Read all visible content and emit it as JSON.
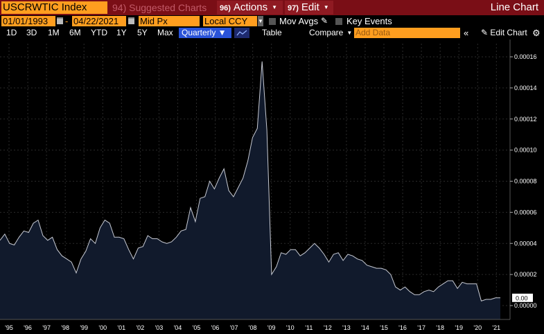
{
  "header": {
    "ticker": "USCRWTIC Index",
    "suggested": "94) Suggested Charts",
    "actions": {
      "num": "96)",
      "label": "Actions"
    },
    "edit": {
      "num": "97)",
      "label": "Edit"
    },
    "title": "Line Chart"
  },
  "controls": {
    "start_date": "01/01/1993",
    "end_date": "04/22/2021",
    "field": "Mid Px",
    "currency": "Local CCY",
    "mov_avgs": "Mov Avgs",
    "key_events": "Key Events"
  },
  "toolbar": {
    "ranges": [
      "1D",
      "3D",
      "1M",
      "6M",
      "YTD",
      "1Y",
      "5Y",
      "Max"
    ],
    "period": "Quarterly ▼",
    "table": "Table",
    "compare": "Compare",
    "add_data_placeholder": "Add Data",
    "edit_chart": "Edit Chart"
  },
  "colors": {
    "header_bg": "#7a0e16",
    "orange_field": "#ff9e1f",
    "line": "#c8cbd4",
    "area": "#111a2c",
    "selected": "#2a53d8"
  },
  "chart_data": {
    "type": "area",
    "series": [
      {
        "values": [
          4.2e-05,
          4.6e-05,
          4e-05,
          3.9e-05,
          4.4e-05,
          4.8e-05,
          4.7e-05,
          5.3e-05,
          5.5e-05,
          4.5e-05,
          4.2e-05,
          4.4e-05,
          3.6e-05,
          3.2e-05,
          3e-05,
          2.8e-05,
          2.1e-05,
          3e-05,
          3.5e-05,
          4.3e-05,
          4e-05,
          5e-05,
          5.5e-05,
          5.3e-05,
          4.4e-05,
          4.4e-05,
          4.3e-05,
          3.6e-05,
          3e-05,
          3.7e-05,
          3.8e-05,
          4.5e-05,
          4.3e-05,
          4.3e-05,
          4.1e-05,
          4e-05,
          4.1e-05,
          4.4e-05,
          4.8e-05,
          4.9e-05,
          6.3e-05,
          5.4e-05,
          6.9e-05,
          7e-05,
          8e-05,
          7.5e-05,
          8.2e-05,
          8.8e-05,
          7.4e-05,
          7e-05,
          7.6e-05,
          8.2e-05,
          9.3e-05,
          0.000108,
          0.000114,
          0.000157,
          0.000113,
          2e-05,
          2.5e-05,
          3.4e-05,
          3.3e-05,
          3.6e-05,
          3.6e-05,
          3.2e-05,
          3.4e-05,
          3.7e-05,
          4e-05,
          3.7e-05,
          3.3e-05,
          2.8e-05,
          3.3e-05,
          3.4e-05,
          2.9e-05,
          3.3e-05,
          3.2e-05,
          3e-05,
          2.9e-05,
          2.6e-05,
          2.5e-05,
          2.4e-05,
          2.4e-05,
          2.3e-05,
          2e-05,
          1.2e-05,
          1e-05,
          1.2e-05,
          9e-06,
          7e-06,
          7e-06,
          9e-06,
          1e-05,
          9e-06,
          1.2e-05,
          1.4e-05,
          1.6e-05,
          1.6e-05,
          1.1e-05,
          1.5e-05,
          1.4e-05,
          1.4e-05,
          1.4e-05,
          3e-06,
          4e-06,
          4e-06,
          5e-06,
          5e-06
        ],
        "last_value_label": "0.00"
      }
    ],
    "y_ticks": [
      "0.00016",
      "0.00014",
      "0.00012",
      "0.00010",
      "0.00008",
      "0.00006",
      "0.00004",
      "0.00002",
      "0.00000"
    ],
    "ylim": [
      0,
      0.00017
    ],
    "x_ticks": [
      "'95",
      "'96",
      "'97",
      "'98",
      "'99",
      "'00",
      "'01",
      "'02",
      "'03",
      "'04",
      "'05",
      "'06",
      "'07",
      "'08",
      "'09",
      "'10",
      "'11",
      "'12",
      "'13",
      "'14",
      "'15",
      "'16",
      "'17",
      "'18",
      "'19",
      "'20",
      "'21"
    ],
    "grid": true
  }
}
